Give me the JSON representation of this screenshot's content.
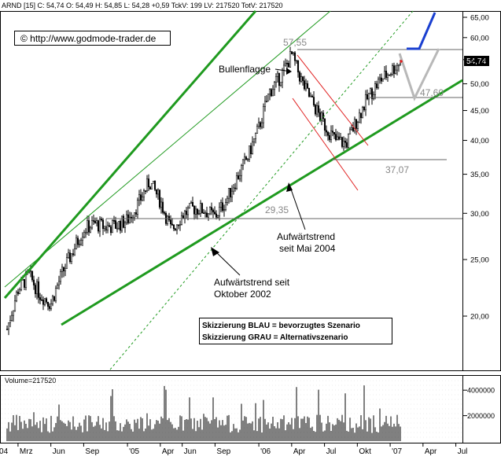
{
  "header": {
    "info_line": "ARND [15] C: 54,74 O: 54,49 H: 54,85 L: 54,28 +0,59 TckV: 199 LV: 217520 TotV: 217520",
    "copyright": "© http://www.godmode-trader.de"
  },
  "colors": {
    "up_candle": "#00aa00",
    "price_bars": "#000000",
    "trendline_green": "#1f9a1f",
    "channel_red": "#e02020",
    "scenario_blue": "#1a3fd0",
    "scenario_grey": "#b8b8b8",
    "level_line": "#666666",
    "last_marker": "#e02020"
  },
  "chart_data": [
    {
      "type": "candlestick",
      "y_scale": "log",
      "ylim": [
        16.5,
        68
      ],
      "y_ticks": [
        20,
        25,
        30,
        35,
        40,
        45,
        50,
        55,
        60,
        65
      ],
      "y_tick_labels": [
        "20,00",
        "25,00",
        "30,00",
        "35,00",
        "40,00",
        "45,00",
        "50,00",
        "55,00",
        "60,00",
        "65,00"
      ],
      "last_price_label": "54,74",
      "last_price": 54.74,
      "series": [
        {
          "x": "2004-02",
          "y": 19.0
        },
        {
          "x": "2004-03",
          "y": 22.2
        },
        {
          "x": "2004-04",
          "y": 23.5
        },
        {
          "x": "2004-05",
          "y": 21.8
        },
        {
          "x": "2004-06",
          "y": 21.0
        },
        {
          "x": "2004-07",
          "y": 23.6
        },
        {
          "x": "2004-08",
          "y": 25.8
        },
        {
          "x": "2004-09",
          "y": 28.2
        },
        {
          "x": "2004-10",
          "y": 28.8
        },
        {
          "x": "2004-11",
          "y": 28.4
        },
        {
          "x": "2004-12",
          "y": 28.6
        },
        {
          "x": "2005-01",
          "y": 29.2
        },
        {
          "x": "2005-02",
          "y": 31.2
        },
        {
          "x": "2005-03",
          "y": 34.0
        },
        {
          "x": "2005-04",
          "y": 31.5
        },
        {
          "x": "2005-05",
          "y": 28.0
        },
        {
          "x": "2005-06",
          "y": 29.8
        },
        {
          "x": "2005-07",
          "y": 30.6
        },
        {
          "x": "2005-08",
          "y": 30.4
        },
        {
          "x": "2005-09",
          "y": 29.6
        },
        {
          "x": "2005-10",
          "y": 31.5
        },
        {
          "x": "2005-11",
          "y": 34.5
        },
        {
          "x": "2005-12",
          "y": 37.5
        },
        {
          "x": "2006-01",
          "y": 42.0
        },
        {
          "x": "2006-02",
          "y": 48.5
        },
        {
          "x": "2006-03",
          "y": 51.5
        },
        {
          "x": "2006-04",
          "y": 56.0
        },
        {
          "x": "2006-05",
          "y": 50.0
        },
        {
          "x": "2006-06",
          "y": 46.0
        },
        {
          "x": "2006-07",
          "y": 42.5
        },
        {
          "x": "2006-08",
          "y": 40.0
        },
        {
          "x": "2006-09",
          "y": 39.5
        },
        {
          "x": "2006-10",
          "y": 43.5
        },
        {
          "x": "2006-11",
          "y": 47.5
        },
        {
          "x": "2006-12",
          "y": 50.5
        },
        {
          "x": "2007-01",
          "y": 52.5
        },
        {
          "x": "2007-02",
          "y": 54.74
        }
      ],
      "annotations": {
        "bullflag_label": "Bullenflagge",
        "level_5755": "57,55",
        "level_4760": "47,60",
        "level_3707": "37,07",
        "level_2935": "29,35",
        "trend_may2004_line1": "Aufwärtstrend",
        "trend_may2004_line2": "seit Mai 2004",
        "trend_oct2002_line1": "Aufwärtstrend seit",
        "trend_oct2002_line2": "Oktober 2002",
        "legend_blue": "Skizzierung BLAU = bevorzugtes Szenario",
        "legend_grey": "Skizzierung GRAU = Alternativszenario"
      },
      "levels": [
        57.55,
        47.6,
        37.07,
        29.35
      ]
    },
    {
      "type": "bar",
      "title": "Volume=217520",
      "ylim": [
        0,
        5000000
      ],
      "y_ticks": [
        2000000,
        4000000
      ],
      "y_tick_labels": [
        "2000000",
        "4000000"
      ]
    }
  ],
  "x_axis": {
    "labels": [
      "'04",
      "Mrz",
      "Jun",
      "Sep",
      "'05",
      "Apr",
      "Jun",
      "Sep",
      "'06",
      "Apr",
      "Jul",
      "Okt",
      "'07",
      "Apr",
      "Jul"
    ]
  }
}
